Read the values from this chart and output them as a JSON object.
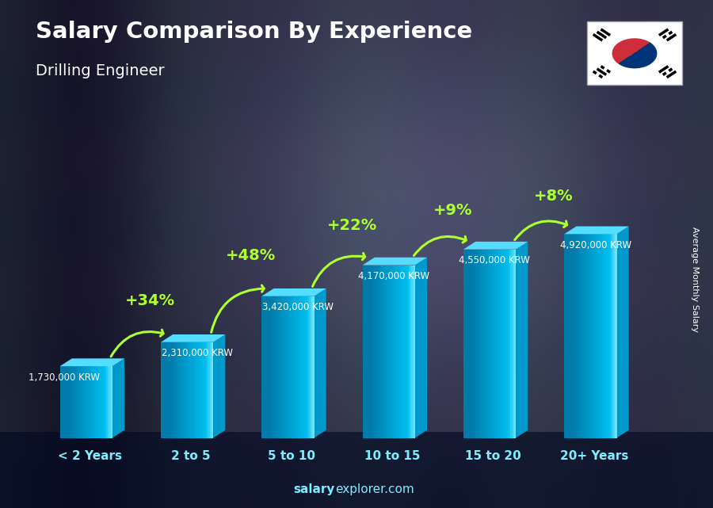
{
  "title": "Salary Comparison By Experience",
  "subtitle": "Drilling Engineer",
  "categories": [
    "< 2 Years",
    "2 to 5",
    "5 to 10",
    "10 to 15",
    "15 to 20",
    "20+ Years"
  ],
  "values": [
    1730000,
    2310000,
    3420000,
    4170000,
    4550000,
    4920000
  ],
  "salary_labels": [
    "1,730,000 KRW",
    "2,310,000 KRW",
    "3,420,000 KRW",
    "4,170,000 KRW",
    "4,550,000 KRW",
    "4,920,000 KRW"
  ],
  "pct_labels": [
    "+34%",
    "+48%",
    "+22%",
    "+9%",
    "+8%"
  ],
  "bar_face_color": "#00BFEF",
  "bar_left_color": "#007BAA",
  "bar_top_color": "#55DDFF",
  "bar_right_color": "#0099CC",
  "pct_color": "#ADFF2F",
  "salary_color": "#FFFFFF",
  "title_color": "#FFFFFF",
  "subtitle_color": "#FFFFFF",
  "cat_label_color": "#7EEEFF",
  "ylabel_text": "Average Monthly Salary",
  "ylabel_color": "#FFFFFF",
  "watermark_bold": "salary",
  "watermark_normal": "explorer.com",
  "figsize": [
    9.0,
    6.41
  ]
}
